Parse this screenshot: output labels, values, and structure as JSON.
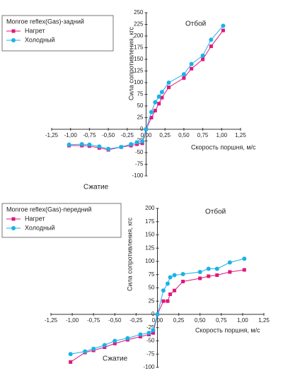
{
  "chart_data": [
    {
      "type": "line",
      "legend_title": "Monroe reflex(Gas)-задний",
      "xlabel": "Скорость поршня, м/с",
      "ylabel": "Сила сопротивления, кгс",
      "annotations": [
        "Отбой",
        "Сжатие"
      ],
      "grid": false,
      "legend": "upper left",
      "x": [
        -1.02,
        -0.85,
        -0.75,
        -0.62,
        -0.5,
        -0.33,
        -0.2,
        -0.12,
        -0.05,
        0,
        0.07,
        0.12,
        0.17,
        0.21,
        0.3,
        0.5,
        0.6,
        0.75,
        0.86,
        1.02
      ],
      "series": [
        {
          "name": "Нагрет",
          "color": "#e0177c",
          "marker": "square",
          "values": [
            -35,
            -35,
            -36,
            -40,
            -44,
            -38,
            -35,
            -32,
            -30,
            0,
            25,
            40,
            55,
            68,
            90,
            110,
            130,
            150,
            178,
            212
          ]
        },
        {
          "name": "Холодный",
          "color": "#1ab2e8",
          "marker": "circle",
          "values": [
            -33,
            -32,
            -33,
            -37,
            -42,
            -38,
            -32,
            -28,
            -26,
            0,
            37,
            58,
            70,
            80,
            100,
            118,
            140,
            158,
            192,
            222
          ]
        }
      ],
      "xlim": [
        -1.25,
        1.25
      ],
      "ylim": [
        -100,
        250
      ],
      "xticks": [
        {
          "value": -1.25,
          "label": "-1,25"
        },
        {
          "value": -1,
          "label": "-1,00"
        },
        {
          "value": -0.75,
          "label": "-0,75"
        },
        {
          "value": -0.5,
          "label": "-0,50"
        },
        {
          "value": -0.25,
          "label": "-0,25"
        },
        {
          "value": 0,
          "label": "0,00"
        },
        {
          "value": 0.25,
          "label": "0,25"
        },
        {
          "value": 0.5,
          "label": "0,50"
        },
        {
          "value": 0.75,
          "label": "0,75"
        },
        {
          "value": 1,
          "label": "1,00"
        },
        {
          "value": 1.25,
          "label": "1,25"
        }
      ],
      "yticks": [
        -100,
        -75,
        -50,
        -25,
        0,
        25,
        50,
        75,
        100,
        125,
        150,
        175,
        200,
        225,
        250
      ]
    },
    {
      "type": "line",
      "legend_title": "Monroe reflex(Gas)-передний",
      "xlabel": "Скорость поршня, м/с",
      "ylabel": "Сила сопротивления, кгс",
      "annotations": [
        "Отбой",
        "Сжатие"
      ],
      "grid": false,
      "legend": "upper left",
      "x": [
        -1.02,
        -0.85,
        -0.75,
        -0.62,
        -0.5,
        -0.35,
        -0.2,
        -0.1,
        -0.05,
        0,
        0.07,
        0.12,
        0.15,
        0.2,
        0.3,
        0.5,
        0.6,
        0.7,
        0.85,
        1.02
      ],
      "series": [
        {
          "name": "Нагрет",
          "color": "#e0177c",
          "marker": "square",
          "values": [
            -90,
            -72,
            -68,
            -62,
            -55,
            -48,
            -42,
            -38,
            -35,
            0,
            25,
            25,
            38,
            45,
            62,
            68,
            72,
            74,
            80,
            84
          ]
        },
        {
          "name": "Холодный",
          "color": "#1ab2e8",
          "marker": "circle",
          "values": [
            -75,
            -70,
            -65,
            -58,
            -50,
            -45,
            -38,
            -35,
            -30,
            0,
            45,
            58,
            70,
            74,
            76,
            80,
            86,
            86,
            98,
            105
          ]
        }
      ],
      "xlim": [
        -1.25,
        1.25
      ],
      "ylim": [
        -100,
        200
      ],
      "xticks": [
        {
          "value": -1.25,
          "label": "-1,25"
        },
        {
          "value": -1,
          "label": "-1,00"
        },
        {
          "value": -0.75,
          "label": "-0,75"
        },
        {
          "value": -0.5,
          "label": "-0,50"
        },
        {
          "value": -0.25,
          "label": "-0,25"
        },
        {
          "value": 0,
          "label": "0,00"
        },
        {
          "value": 0.25,
          "label": "0,25"
        },
        {
          "value": 0.5,
          "label": "0,50"
        },
        {
          "value": 0.75,
          "label": "0,75"
        },
        {
          "value": 1,
          "label": "1,00"
        },
        {
          "value": 1.25,
          "label": "1,25"
        }
      ],
      "yticks": [
        -100,
        -75,
        -50,
        -25,
        0,
        25,
        50,
        75,
        100,
        125,
        150,
        175,
        200
      ]
    }
  ]
}
